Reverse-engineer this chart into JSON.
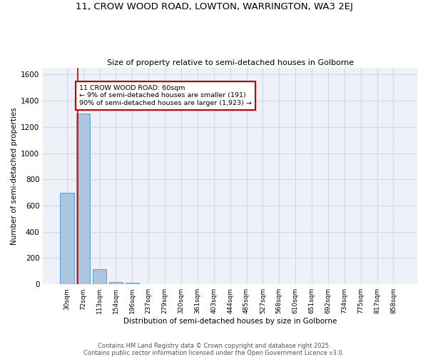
{
  "title1": "11, CROW WOOD ROAD, LOWTON, WARRINGTON, WA3 2EJ",
  "title2": "Size of property relative to semi-detached houses in Golborne",
  "xlabel": "Distribution of semi-detached houses by size in Golborne",
  "ylabel": "Number of semi-detached properties",
  "categories": [
    "30sqm",
    "72sqm",
    "113sqm",
    "154sqm",
    "196sqm",
    "237sqm",
    "279sqm",
    "320sqm",
    "361sqm",
    "403sqm",
    "444sqm",
    "485sqm",
    "527sqm",
    "568sqm",
    "610sqm",
    "651sqm",
    "692sqm",
    "734sqm",
    "775sqm",
    "817sqm",
    "858sqm"
  ],
  "values": [
    700,
    1300,
    113,
    15,
    10,
    0,
    0,
    0,
    0,
    0,
    0,
    0,
    0,
    0,
    0,
    0,
    0,
    0,
    0,
    0,
    0
  ],
  "bar_color": "#adc6e0",
  "bar_edge_color": "#5b9bd5",
  "grid_color": "#d0d8e8",
  "background_color": "#eef2f8",
  "annotation_text": "11 CROW WOOD ROAD: 60sqm\n← 9% of semi-detached houses are smaller (191)\n90% of semi-detached houses are larger (1,923) →",
  "annotation_box_color": "#ffffff",
  "annotation_box_edge": "#cc0000",
  "footer": "Contains HM Land Registry data © Crown copyright and database right 2025.\nContains public sector information licensed under the Open Government Licence v3.0.",
  "ylim": [
    0,
    1650
  ],
  "yticks": [
    0,
    200,
    400,
    600,
    800,
    1000,
    1200,
    1400,
    1600
  ]
}
